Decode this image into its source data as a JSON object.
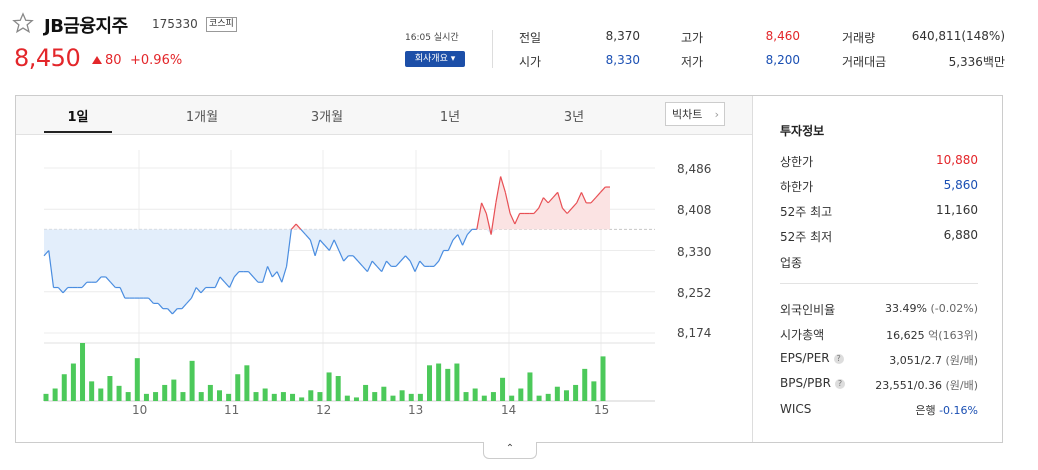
{
  "stock": {
    "name": "JB금융지주",
    "code": "175330",
    "market": "코스피",
    "price": "8,450",
    "change": "80",
    "change_pct": "+0.96%",
    "realtime": "16:05 실시간",
    "company_button": "회사개요 ▾"
  },
  "quote": {
    "prev_label": "전일",
    "prev": "8,370",
    "high_label": "고가",
    "high": "8,460",
    "volume_label": "거래량",
    "volume": "640,811(148%)",
    "open_label": "시가",
    "open": "8,330",
    "low_label": "저가",
    "low": "8,200",
    "amount_label": "거래대금",
    "amount": "5,336백만"
  },
  "tabs": [
    "1일",
    "1개월",
    "3개월",
    "1년",
    "3년"
  ],
  "big_chart_button": "빅차트",
  "invest": {
    "title": "투자정보",
    "items": [
      {
        "label": "상한가",
        "value": "10,880",
        "color": "#e3262a"
      },
      {
        "label": "하한가",
        "value": "5,860",
        "color": "#1a4fb3"
      },
      {
        "label": "52주 최고",
        "value": "11,160"
      },
      {
        "label": "52주 최저",
        "value": "6,880"
      },
      {
        "label": "업종",
        "value": ""
      }
    ],
    "items2": [
      {
        "label": "외국인비율",
        "value": "33.49%",
        "sub": "(-0.02%)"
      },
      {
        "label": "시가총액",
        "value": "16,625",
        "sub": "억(163위)"
      },
      {
        "label": "EPS/PER",
        "value": "3,051/2.7",
        "sub": "(원/배)",
        "help": "?"
      },
      {
        "label": "BPS/PBR",
        "value": "23,551/0.36",
        "sub": "(원/배)",
        "help": "?"
      },
      {
        "label": "WICS",
        "value": "은행",
        "sub": "-0.16%"
      }
    ]
  },
  "chart_data": {
    "type": "line",
    "base_price": 8370,
    "ylim": [
      8174,
      8486
    ],
    "yticks": [
      "8,486",
      "8,408",
      "8,330",
      "8,252",
      "8,174"
    ],
    "xticks": [
      "10",
      "11",
      "12",
      "13",
      "14",
      "15"
    ],
    "price": [
      8320,
      8330,
      8260,
      8260,
      8250,
      8260,
      8260,
      8260,
      8260,
      8270,
      8270,
      8270,
      8280,
      8280,
      8270,
      8260,
      8260,
      8240,
      8240,
      8240,
      8240,
      8240,
      8240,
      8230,
      8230,
      8220,
      8220,
      8210,
      8220,
      8220,
      8230,
      8240,
      8260,
      8250,
      8260,
      8260,
      8260,
      8280,
      8270,
      8260,
      8280,
      8290,
      8290,
      8290,
      8280,
      8270,
      8270,
      8300,
      8280,
      8290,
      8270,
      8300,
      8370,
      8380,
      8370,
      8360,
      8350,
      8320,
      8350,
      8340,
      8330,
      8350,
      8330,
      8310,
      8320,
      8320,
      8310,
      8300,
      8290,
      8310,
      8300,
      8290,
      8310,
      8300,
      8300,
      8310,
      8320,
      8310,
      8290,
      8310,
      8300,
      8300,
      8300,
      8310,
      8330,
      8330,
      8350,
      8360,
      8340,
      8360,
      8370,
      8370,
      8420,
      8400,
      8360,
      8420,
      8470,
      8440,
      8400,
      8380,
      8400,
      8400,
      8400,
      8400,
      8410,
      8430,
      8420,
      8430,
      8440,
      8410,
      8400,
      8410,
      8420,
      8440,
      8420,
      8420,
      8430,
      8440,
      8450,
      8450
    ],
    "volume": [
      8,
      14,
      30,
      42,
      65,
      22,
      14,
      28,
      17,
      10,
      48,
      8,
      10,
      18,
      24,
      10,
      45,
      10,
      18,
      12,
      8,
      30,
      40,
      10,
      14,
      8,
      10,
      8,
      4,
      12,
      10,
      32,
      28,
      6,
      4,
      18,
      10,
      16,
      6,
      12,
      8,
      8,
      40,
      42,
      36,
      42,
      10,
      14,
      6,
      10,
      26,
      6,
      14,
      32,
      6,
      8,
      16,
      12,
      18,
      36,
      22,
      50
    ],
    "volume_max": 65
  }
}
